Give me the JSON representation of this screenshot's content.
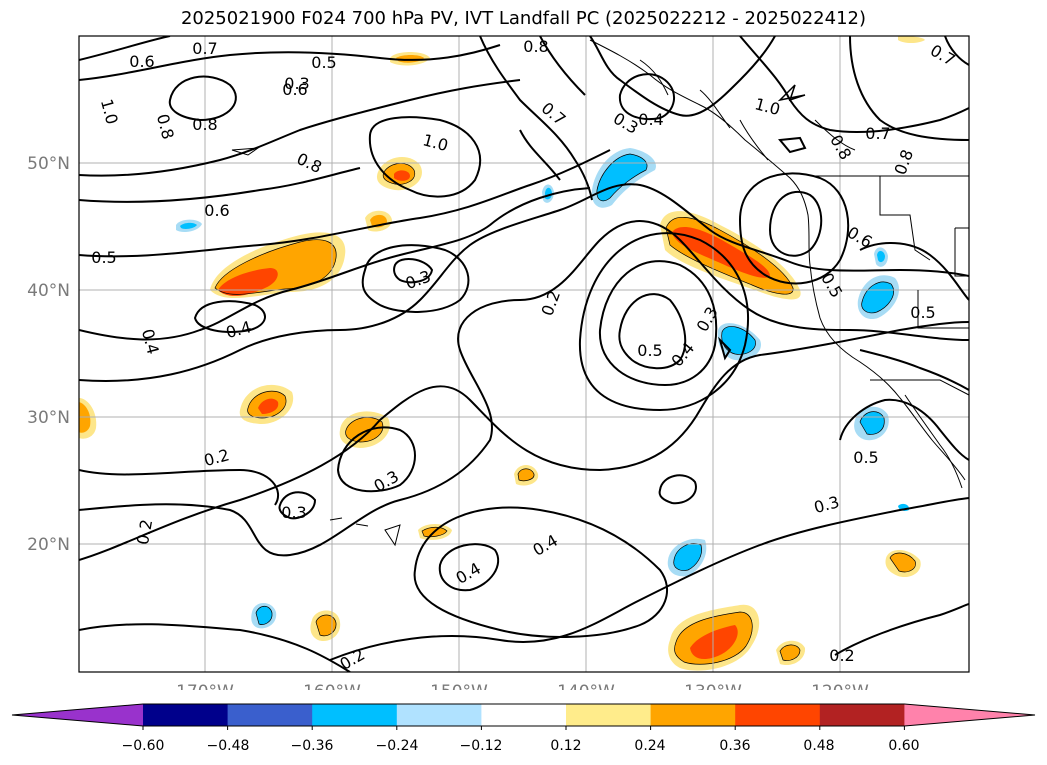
{
  "title": "2025021900 F024 700 hPa PV, IVT Landfall PC (2025022212 - 2025022412)",
  "map": {
    "lat_labels": [
      "50°N",
      "40°N",
      "30°N",
      "20°N"
    ],
    "lon_labels": [
      "170°W",
      "160°W",
      "150°W",
      "140°W",
      "130°W",
      "120°W"
    ],
    "contour_labels": [
      "0.6",
      "0.7",
      "0.5",
      "0.8",
      "1.0",
      "0.8",
      "0.8",
      "0.6",
      "1.0",
      "0.8",
      "0.6",
      "0.5",
      "0.3",
      "0.4",
      "0.4",
      "0.3",
      "0.2",
      "0.5",
      "0.4",
      "0.3",
      "0.4",
      "0.3",
      "0.6",
      "0.5",
      "0.2",
      "0.3",
      "0.3",
      "0.2",
      "0.4",
      "0.4",
      "0.3",
      "0.5",
      "0.7",
      "1.0",
      "0.7",
      "0.8",
      "0.8",
      "0.7",
      "0.5",
      "0.2",
      "0.2"
    ],
    "colors": {
      "contour": "#000000",
      "grid": "#b0b0b0",
      "pos_light": "#fde68a",
      "pos_mid": "#ffa500",
      "pos_strong": "#ff4500",
      "neg_light": "#a7dcf5",
      "neg_mid": "#00bfff",
      "neg_strong": "#3355cc"
    }
  },
  "colorbar": {
    "ticks": [
      "−0.60",
      "−0.48",
      "−0.36",
      "−0.24",
      "−0.12",
      "0.12",
      "0.24",
      "0.36",
      "0.48",
      "0.60"
    ],
    "colors": [
      "#9932cc",
      "#00008b",
      "#3a5fcd",
      "#00bfff",
      "#b0e2ff",
      "#ffffff",
      "#ffec8b",
      "#ffa500",
      "#ff4500",
      "#b22222",
      "#ff82ab"
    ]
  }
}
